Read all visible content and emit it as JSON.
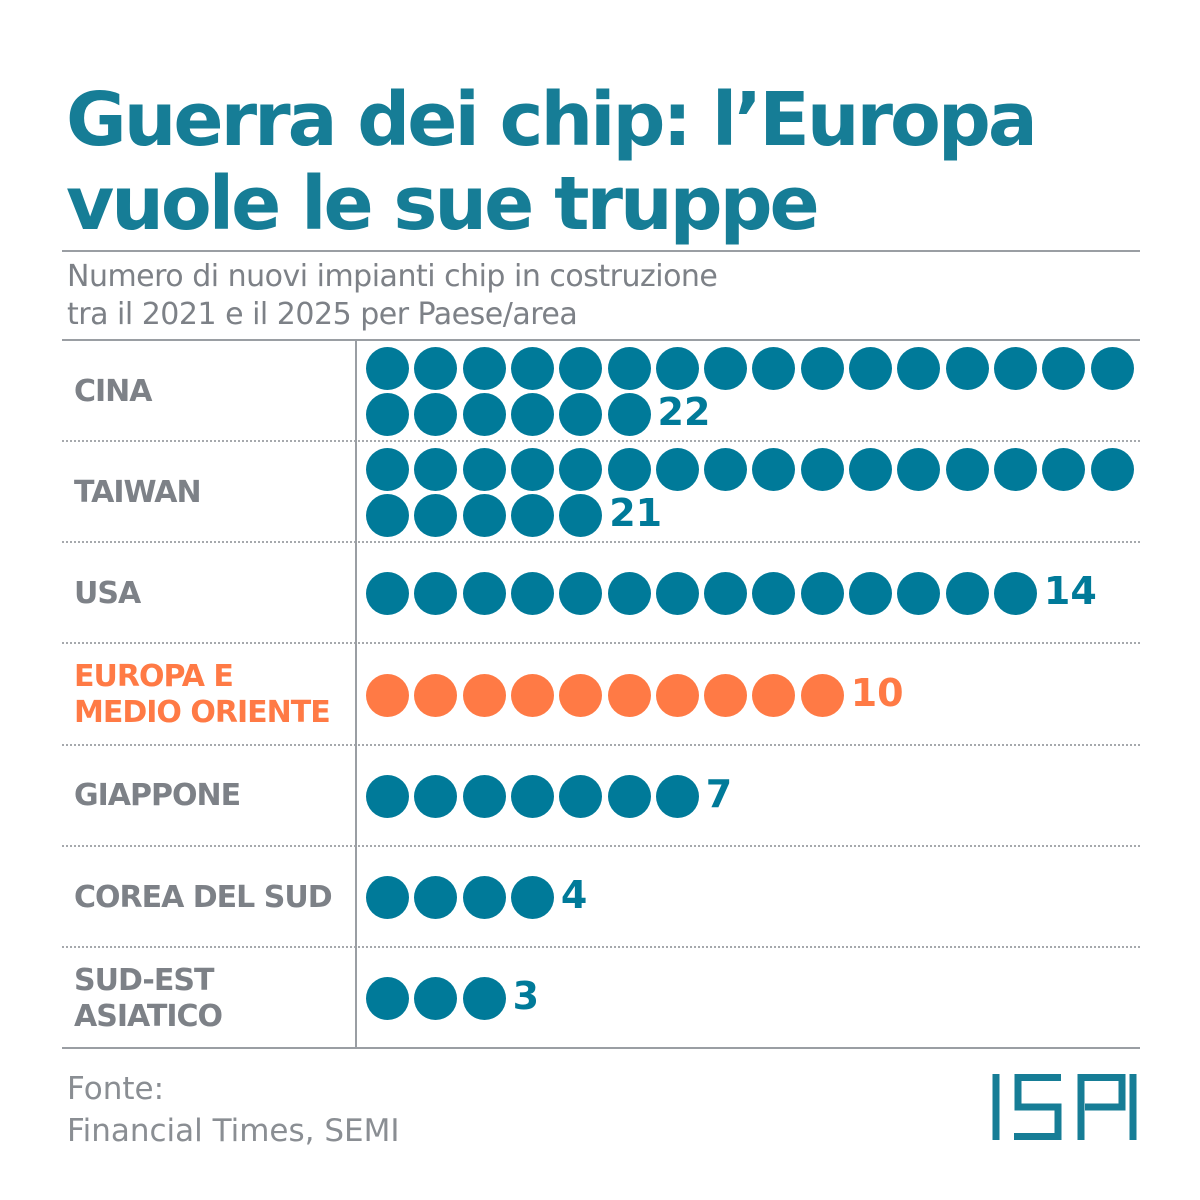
{
  "title_line1": "Guerra dei chip: l’Europa",
  "title_line2": "vuole le sue truppe",
  "subtitle_line1": "Numero di nuovi impianti chip in costruzione",
  "subtitle_line2": "tra il 2021 e il 2025 per Paese/area",
  "source_label": "Fonte:",
  "source_text": "Financial Times, SEMI",
  "logo": "ISPI",
  "colors": {
    "default": "#007a99",
    "highlight": "#ff7a45",
    "label": "#7d8187"
  },
  "chart_data": {
    "type": "pictogram",
    "title": "Guerra dei chip: l’Europa vuole le sue truppe",
    "unit": "1 dot = 1 impianto",
    "dots_per_row": 16,
    "categories": [
      "CINA",
      "TAIWAN",
      "USA",
      "EUROPA E MEDIO ORIENTE",
      "GIAPPONE",
      "COREA DEL SUD",
      "SUD-EST ASIATICO"
    ],
    "label_lines": [
      [
        "CINA"
      ],
      [
        "TAIWAN"
      ],
      [
        "USA"
      ],
      [
        "EUROPA E",
        "MEDIO ORIENTE"
      ],
      [
        "GIAPPONE"
      ],
      [
        "COREA DEL SUD"
      ],
      [
        "SUD-EST",
        "ASIATICO"
      ]
    ],
    "values": [
      22,
      21,
      14,
      10,
      7,
      4,
      3
    ],
    "highlight": [
      false,
      false,
      false,
      true,
      false,
      false,
      false
    ]
  }
}
